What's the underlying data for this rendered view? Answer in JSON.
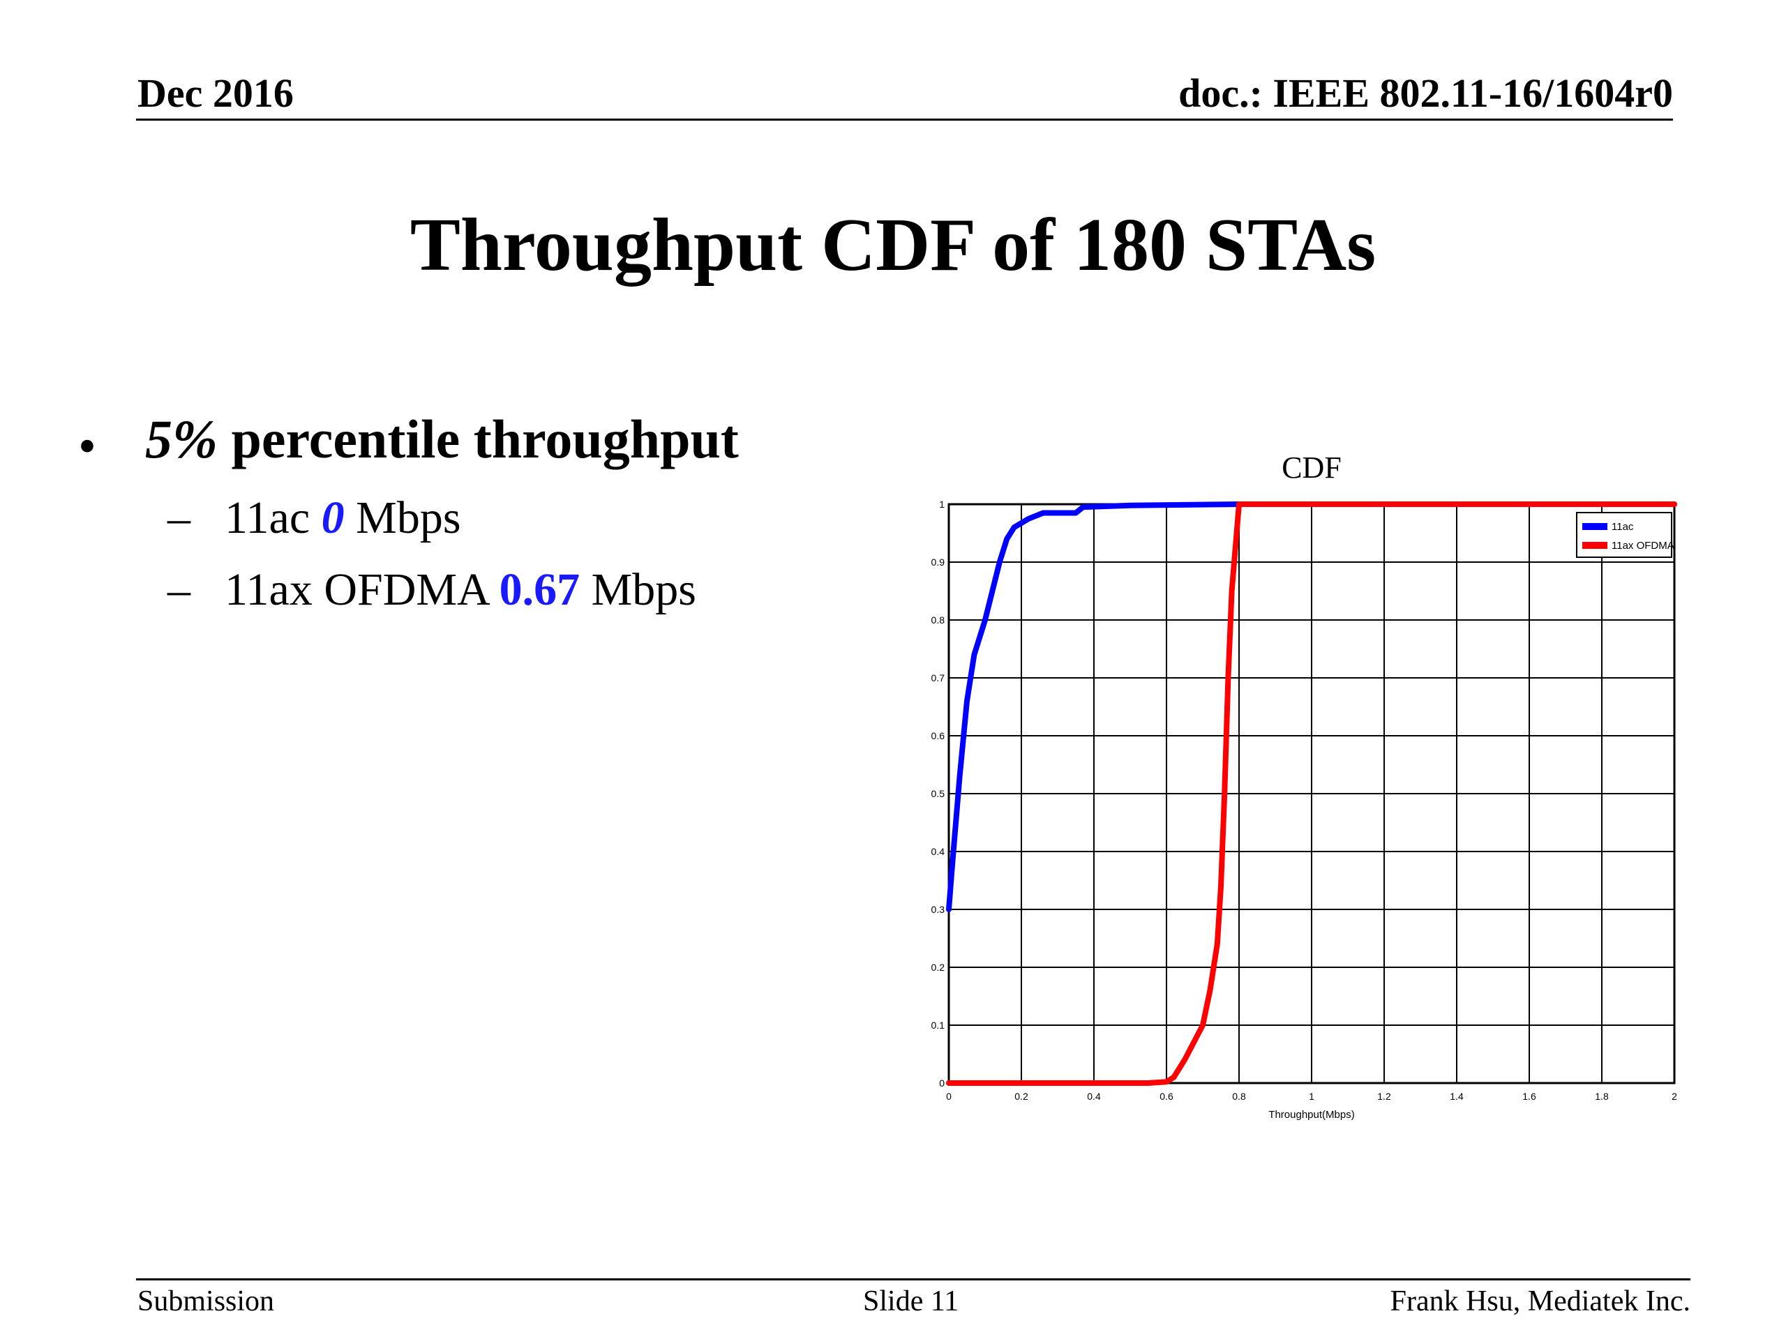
{
  "header": {
    "date": "Dec 2016",
    "doc": "doc.: IEEE 802.11-16/1604r0"
  },
  "title": "Throughput CDF of 180 STAs",
  "bullet": {
    "marker": "•",
    "pct": "5%",
    "rest": " percentile throughput",
    "items": [
      {
        "dash": "–",
        "label": "11ac ",
        "value": "0",
        "unit": " Mbps"
      },
      {
        "dash": "–",
        "label": "11ax OFDMA ",
        "value": "0.67",
        "unit": " Mbps"
      }
    ]
  },
  "footer": {
    "left": "Submission",
    "center": "Slide 11",
    "right": "Frank Hsu, Mediatek Inc."
  },
  "chart_data": {
    "type": "line",
    "title": "CDF",
    "xlabel": "Throughput(Mbps)",
    "ylabel": "",
    "xlim": [
      0,
      2
    ],
    "ylim": [
      0,
      1
    ],
    "xticks": [
      "0",
      "0.2",
      "0.4",
      "0.6",
      "0.8",
      "1",
      "1.2",
      "1.4",
      "1.6",
      "1.8",
      "2"
    ],
    "yticks": [
      "0",
      "0.1",
      "0.2",
      "0.3",
      "0.4",
      "0.5",
      "0.6",
      "0.7",
      "0.8",
      "0.9",
      "1"
    ],
    "grid": true,
    "legend_position": "top-right",
    "series": [
      {
        "name": "11ac",
        "color": "#0000ff",
        "x": [
          0,
          0.01,
          0.03,
          0.05,
          0.07,
          0.1,
          0.12,
          0.14,
          0.16,
          0.18,
          0.22,
          0.26,
          0.35,
          0.37,
          0.5,
          0.8,
          2.0
        ],
        "y": [
          0.3,
          0.38,
          0.53,
          0.66,
          0.74,
          0.8,
          0.85,
          0.9,
          0.94,
          0.96,
          0.975,
          0.985,
          0.985,
          0.995,
          0.998,
          1.0,
          1.0
        ]
      },
      {
        "name": "11ax OFDMA",
        "color": "#ff0000",
        "x": [
          0,
          0.55,
          0.6,
          0.62,
          0.65,
          0.7,
          0.72,
          0.74,
          0.75,
          0.76,
          0.77,
          0.78,
          0.8,
          2.0
        ],
        "y": [
          0,
          0,
          0.002,
          0.01,
          0.04,
          0.1,
          0.16,
          0.24,
          0.34,
          0.5,
          0.7,
          0.85,
          1.0,
          1.0
        ]
      }
    ]
  }
}
